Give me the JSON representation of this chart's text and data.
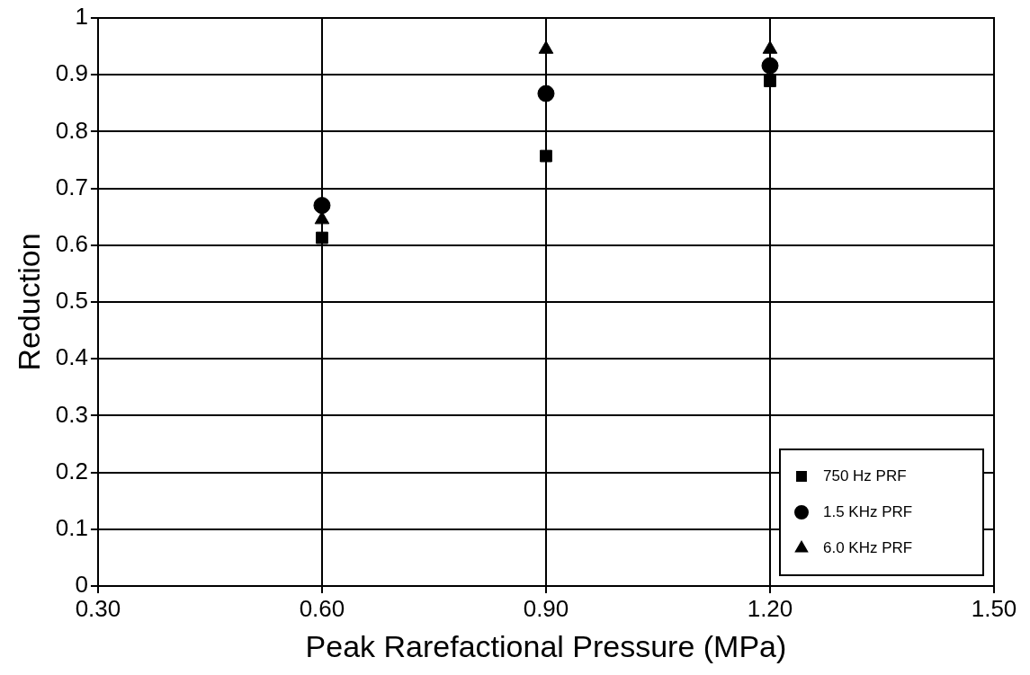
{
  "chart_data": {
    "type": "scatter",
    "xlabel": "Peak Rarefactional Pressure (MPa)",
    "ylabel": "Reduction",
    "series": [
      {
        "name": "750 Hz PRF",
        "color": "#000000",
        "marker": "square",
        "x": [
          0.6,
          0.9,
          1.2
        ],
        "values": [
          0.613,
          0.757,
          0.889
        ]
      },
      {
        "name": "1.5 KHz PRF",
        "color": "#000000",
        "marker": "circle",
        "x": [
          0.6,
          0.9,
          1.2
        ],
        "values": [
          0.67,
          0.867,
          0.916
        ]
      },
      {
        "name": "6.0 KHz PRF",
        "color": "#000000",
        "marker": "triangle",
        "x": [
          0.6,
          0.9,
          1.2
        ],
        "values": [
          0.645,
          0.945,
          0.945
        ]
      }
    ],
    "xlim": [
      0.3,
      1.5
    ],
    "xticks": [
      {
        "value": 0.3,
        "label": "0.30"
      },
      {
        "value": 0.6,
        "label": "0.60"
      },
      {
        "value": 0.9,
        "label": "0.90"
      },
      {
        "value": 1.2,
        "label": "1.20"
      },
      {
        "value": 1.5,
        "label": "1.50"
      }
    ],
    "ylim": [
      0,
      1
    ],
    "yticks": [
      0,
      0.1,
      0.2,
      0.3,
      0.4,
      0.5,
      0.6,
      0.7,
      0.8,
      0.9,
      1
    ],
    "grid": true,
    "legend": "bottom right"
  }
}
